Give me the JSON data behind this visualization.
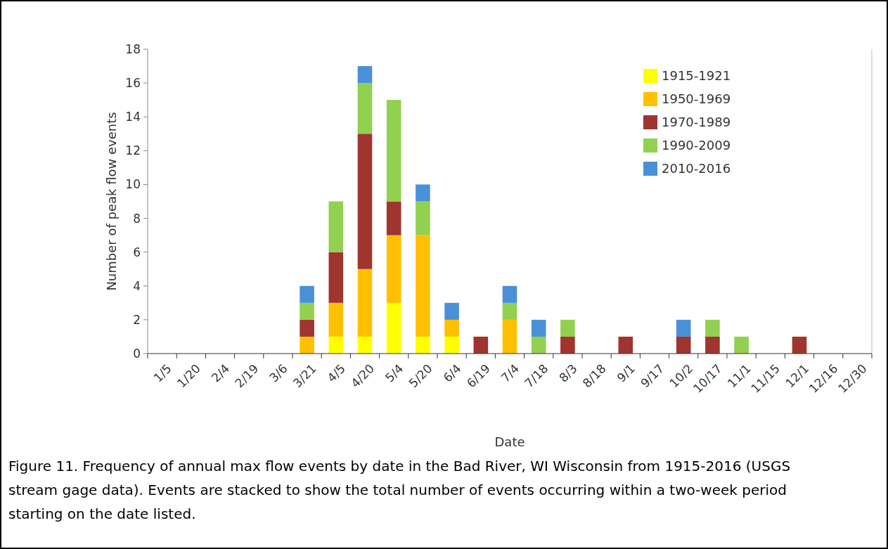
{
  "chart_data": {
    "type": "bar",
    "stacked": true,
    "xlabel": "Date",
    "ylabel": "Number of peak flow events",
    "categories": [
      "1/5",
      "1/20",
      "2/4",
      "2/19",
      "3/6",
      "3/21",
      "4/5",
      "4/20",
      "5/4",
      "5/20",
      "6/4",
      "6/19",
      "7/4",
      "7/18",
      "8/3",
      "8/18",
      "9/1",
      "9/17",
      "10/2",
      "10/17",
      "11/1",
      "11/15",
      "12/1",
      "12/16",
      "12/30"
    ],
    "series": [
      {
        "name": "1915-1921",
        "color": "#ffff00",
        "values": [
          0,
          0,
          0,
          0,
          0,
          0,
          1,
          1,
          3,
          1,
          1,
          0,
          0,
          0,
          0,
          0,
          0,
          0,
          0,
          0,
          0,
          0,
          0,
          0,
          0
        ]
      },
      {
        "name": "1950-1969",
        "color": "#ffc000",
        "values": [
          0,
          0,
          0,
          0,
          0,
          1,
          2,
          4,
          4,
          6,
          1,
          0,
          2,
          0,
          0,
          0,
          0,
          0,
          0,
          0,
          0,
          0,
          0,
          0,
          0
        ]
      },
      {
        "name": "1970-1989",
        "color": "#a0342f",
        "values": [
          0,
          0,
          0,
          0,
          0,
          1,
          3,
          8,
          2,
          0,
          0,
          1,
          0,
          0,
          1,
          0,
          1,
          0,
          1,
          1,
          0,
          0,
          1,
          0,
          0
        ]
      },
      {
        "name": "1990-2009",
        "color": "#92d050",
        "values": [
          0,
          0,
          0,
          0,
          0,
          1,
          3,
          3,
          6,
          2,
          0,
          0,
          1,
          1,
          1,
          0,
          0,
          0,
          0,
          1,
          1,
          0,
          0,
          0,
          0
        ]
      },
      {
        "name": "2010-2016",
        "color": "#4a90d9",
        "values": [
          0,
          0,
          0,
          0,
          0,
          1,
          0,
          1,
          0,
          1,
          1,
          0,
          1,
          1,
          0,
          0,
          0,
          0,
          1,
          0,
          0,
          0,
          0,
          0,
          0
        ]
      }
    ],
    "ylim": [
      0,
      18
    ],
    "yticks": [
      0,
      2,
      4,
      6,
      8,
      10,
      12,
      14,
      16,
      18
    ],
    "grid": false,
    "legend": "top right",
    "annotations": [
      "Figure 11. Frequency of annual max flow events by date in the Bad River, WI Wisconsin from 1915-2016 (USGS stream gage data).  Events are stacked to show the total number of events occurring within a two-week period starting on the date listed."
    ]
  }
}
